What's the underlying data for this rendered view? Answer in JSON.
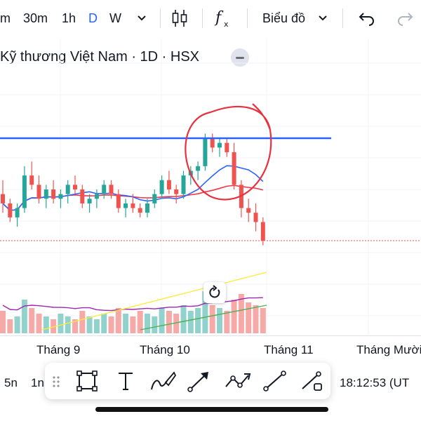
{
  "toolbar": {
    "intervals": [
      "m",
      "30m",
      "1h",
      "D",
      "W"
    ],
    "active_interval": "D",
    "chart_type_label": "Biểu đồ"
  },
  "title": {
    "text": "Kỹ thương Việt Nam · 1D · HSX"
  },
  "x_axis": {
    "labels": [
      "Tháng 9",
      "Tháng 10",
      "Tháng 11",
      "Tháng Mười"
    ]
  },
  "bottom": {
    "ranges": [
      "5n",
      "1n"
    ],
    "time": "18:12:53 (UT"
  },
  "drawing_tools": [
    "rectangle-tool",
    "text-tool",
    "brush-tool",
    "arrow-tool",
    "path-tool",
    "line-tool",
    "measure-tool"
  ],
  "colors": {
    "up": "#26a69a",
    "down": "#ef5350",
    "horizontal_line": "#2962ff",
    "ma_fast": "#2962ff",
    "ma_slow": "#f23645",
    "annotation": "#e8313f",
    "accent": "#2962ff"
  },
  "chart_data": {
    "type": "candlestick",
    "candles": [
      {
        "o": 49,
        "h": 52,
        "l": 45,
        "c": 47
      },
      {
        "o": 47,
        "h": 48,
        "l": 43,
        "c": 44
      },
      {
        "o": 44,
        "h": 47,
        "l": 42,
        "c": 46
      },
      {
        "o": 46,
        "h": 55,
        "l": 45,
        "c": 53
      },
      {
        "o": 53,
        "h": 56,
        "l": 50,
        "c": 51
      },
      {
        "o": 51,
        "h": 53,
        "l": 47,
        "c": 48
      },
      {
        "o": 48,
        "h": 51,
        "l": 46,
        "c": 50
      },
      {
        "o": 50,
        "h": 52,
        "l": 47,
        "c": 48
      },
      {
        "o": 48,
        "h": 50,
        "l": 46,
        "c": 49
      },
      {
        "o": 49,
        "h": 52,
        "l": 47,
        "c": 51
      },
      {
        "o": 51,
        "h": 53,
        "l": 49,
        "c": 50
      },
      {
        "o": 50,
        "h": 51,
        "l": 46,
        "c": 47
      },
      {
        "o": 47,
        "h": 49,
        "l": 45,
        "c": 48
      },
      {
        "o": 48,
        "h": 50,
        "l": 46,
        "c": 49
      },
      {
        "o": 49,
        "h": 52,
        "l": 48,
        "c": 51
      },
      {
        "o": 51,
        "h": 52,
        "l": 48,
        "c": 49
      },
      {
        "o": 49,
        "h": 50,
        "l": 45,
        "c": 46
      },
      {
        "o": 46,
        "h": 48,
        "l": 44,
        "c": 47
      },
      {
        "o": 47,
        "h": 49,
        "l": 45,
        "c": 46
      },
      {
        "o": 46,
        "h": 47,
        "l": 44,
        "c": 45
      },
      {
        "o": 45,
        "h": 48,
        "l": 44,
        "c": 47
      },
      {
        "o": 47,
        "h": 50,
        "l": 46,
        "c": 49
      },
      {
        "o": 49,
        "h": 53,
        "l": 48,
        "c": 52
      },
      {
        "o": 52,
        "h": 54,
        "l": 49,
        "c": 50
      },
      {
        "o": 50,
        "h": 51,
        "l": 47,
        "c": 49
      },
      {
        "o": 49,
        "h": 54,
        "l": 48,
        "c": 53
      },
      {
        "o": 53,
        "h": 55,
        "l": 51,
        "c": 54
      },
      {
        "o": 54,
        "h": 56,
        "l": 52,
        "c": 55
      },
      {
        "o": 55,
        "h": 62,
        "l": 54,
        "c": 61
      },
      {
        "o": 61,
        "h": 62,
        "l": 58,
        "c": 59
      },
      {
        "o": 59,
        "h": 61,
        "l": 57,
        "c": 60
      },
      {
        "o": 60,
        "h": 61,
        "l": 57,
        "c": 58
      },
      {
        "o": 58,
        "h": 60,
        "l": 50,
        "c": 51
      },
      {
        "o": 51,
        "h": 52,
        "l": 44,
        "c": 46
      },
      {
        "o": 46,
        "h": 48,
        "l": 43,
        "c": 45
      },
      {
        "o": 45,
        "h": 47,
        "l": 41,
        "c": 43
      },
      {
        "o": 43,
        "h": 44,
        "l": 38,
        "c": 39
      }
    ],
    "volumes": [
      8,
      5,
      6,
      12,
      9,
      7,
      6,
      5,
      7,
      6,
      5,
      8,
      6,
      5,
      7,
      6,
      9,
      7,
      6,
      8,
      7,
      6,
      9,
      8,
      7,
      10,
      8,
      9,
      15,
      10,
      9,
      8,
      12,
      14,
      11,
      10,
      9
    ],
    "resistance_level": 61,
    "last_price": 39
  }
}
